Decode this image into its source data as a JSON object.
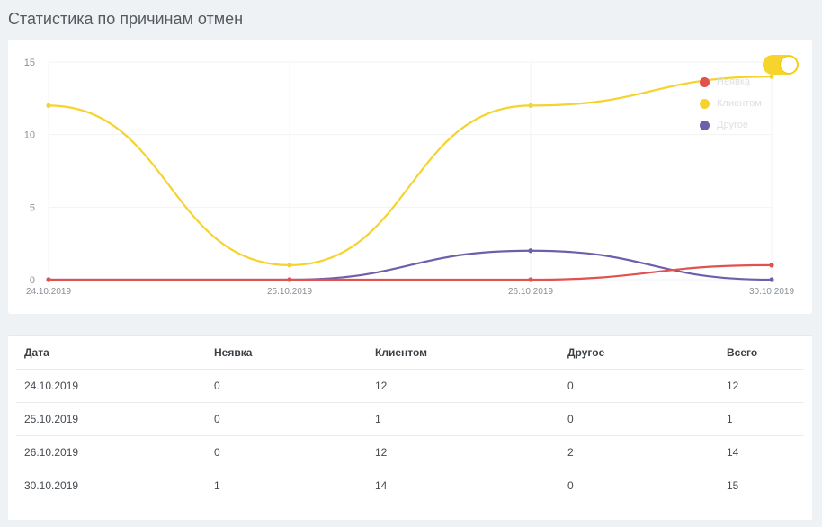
{
  "page": {
    "title": "Статистика по причинам отмен"
  },
  "colors": {
    "no_show": "#e0524f",
    "client": "#f5d32f",
    "other": "#6f5fab"
  },
  "chart_data": {
    "type": "line",
    "categories": [
      "24.10.2019",
      "25.10.2019",
      "26.10.2019",
      "30.10.2019"
    ],
    "series": [
      {
        "name": "Неявка",
        "values": [
          0,
          0,
          0,
          1
        ]
      },
      {
        "name": "Клиентом",
        "values": [
          12,
          1,
          12,
          14
        ]
      },
      {
        "name": "Другое",
        "values": [
          0,
          0,
          2,
          0
        ]
      }
    ],
    "yticks": [
      0,
      5,
      10,
      15
    ],
    "ylim": [
      0,
      15
    ],
    "grid": true,
    "legend_position": "top-right"
  },
  "table": {
    "headers": [
      "Дата",
      "Неявка",
      "Клиентом",
      "Другое",
      "Всего"
    ],
    "rows": [
      [
        "24.10.2019",
        "0",
        "12",
        "0",
        "12"
      ],
      [
        "25.10.2019",
        "0",
        "1",
        "0",
        "1"
      ],
      [
        "26.10.2019",
        "0",
        "12",
        "2",
        "14"
      ],
      [
        "30.10.2019",
        "1",
        "14",
        "0",
        "15"
      ]
    ]
  }
}
